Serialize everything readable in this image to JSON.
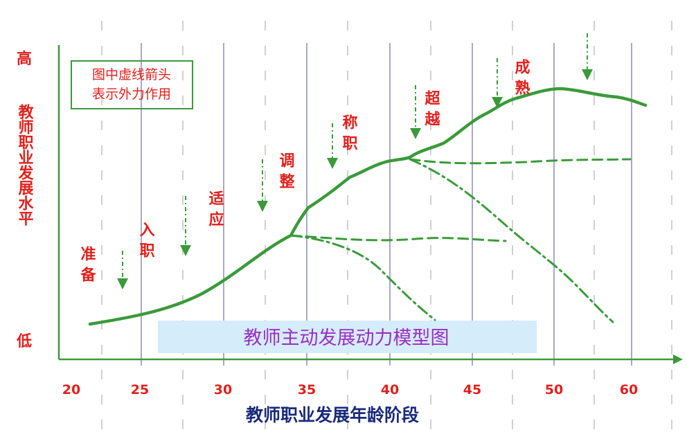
{
  "y_axis": {
    "high": "高",
    "label": "教师职业发展水平",
    "low": "低"
  },
  "note": {
    "lines": [
      "图中虚线箭头",
      "表示外力作用"
    ]
  },
  "stages": [
    "准备",
    "入职",
    "适应",
    "调整",
    "称职",
    "超越",
    "成熟"
  ],
  "x_axis": {
    "ticks": [
      "20",
      "25",
      "30",
      "35",
      "40",
      "45",
      "50",
      "60"
    ],
    "label": "教师职业发展年龄阶段"
  },
  "title": "教师主动发展动力模型图"
}
